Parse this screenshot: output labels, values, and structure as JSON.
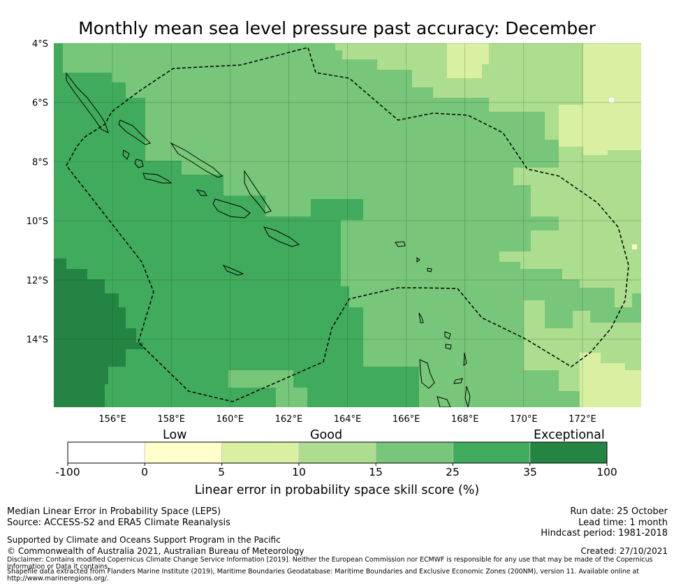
{
  "title": "Monthly mean sea level pressure past accuracy: December",
  "map": {
    "lon_labels": [
      "156°E",
      "158°E",
      "160°E",
      "162°E",
      "164°E",
      "166°E",
      "168°E",
      "170°E",
      "172°E"
    ],
    "lat_labels": [
      "4°S",
      "6°S",
      "8°S",
      "10°S",
      "12°S",
      "14°S"
    ],
    "lon_range": [
      154.0,
      174.0
    ],
    "lat_range": [
      -16.3,
      -4.0
    ],
    "eez_boundary_style": "dashed"
  },
  "colorbar": {
    "categories": [
      "Low",
      "Good",
      "Exceptional"
    ],
    "ticks": [
      "-100",
      "0",
      "5",
      "10",
      "15",
      "25",
      "35",
      "100"
    ],
    "colors": [
      "#ffffff",
      "#ffffcc",
      "#d9f0a3",
      "#addd8e",
      "#78c679",
      "#41ab5d",
      "#238443"
    ],
    "label": "Linear error in probability space skill score (%)"
  },
  "footer": {
    "left": {
      "line1": "Median Linear Error in Probability Space (LEPS)",
      "line2": "Source: ACCESS-S2 and ERA5 Climate Reanalysis",
      "line3": "Supported by Climate and Oceans Support Program in the Pacific",
      "line4": "© Commonwealth of Australia 2021, Australian Bureau of Meteorology"
    },
    "right": {
      "run_date": "Run date: 25 October",
      "lead_time": "Lead time: 1 month",
      "hindcast": "Hindcast period: 1981-2018",
      "created": "Created: 27/10/2021"
    },
    "disclaimer1": "Disclaimer: Contains modified Copernicus Climate Change Service Information [2019]. Neither the European Commission nor ECMWF is responsible for any use that may be made of the Copernicus",
    "disclaimer2": "Information or Data it contains.",
    "disclaimer3": "Shapefile data extracted from Flanders Marine Institute (2019), Maritime Boundaries Geodatabase: Maritime Boundaries and Exclusive Economic Zones (200NM), version 11. Available online at",
    "disclaimer4": "http://www.marineregions.org/."
  }
}
